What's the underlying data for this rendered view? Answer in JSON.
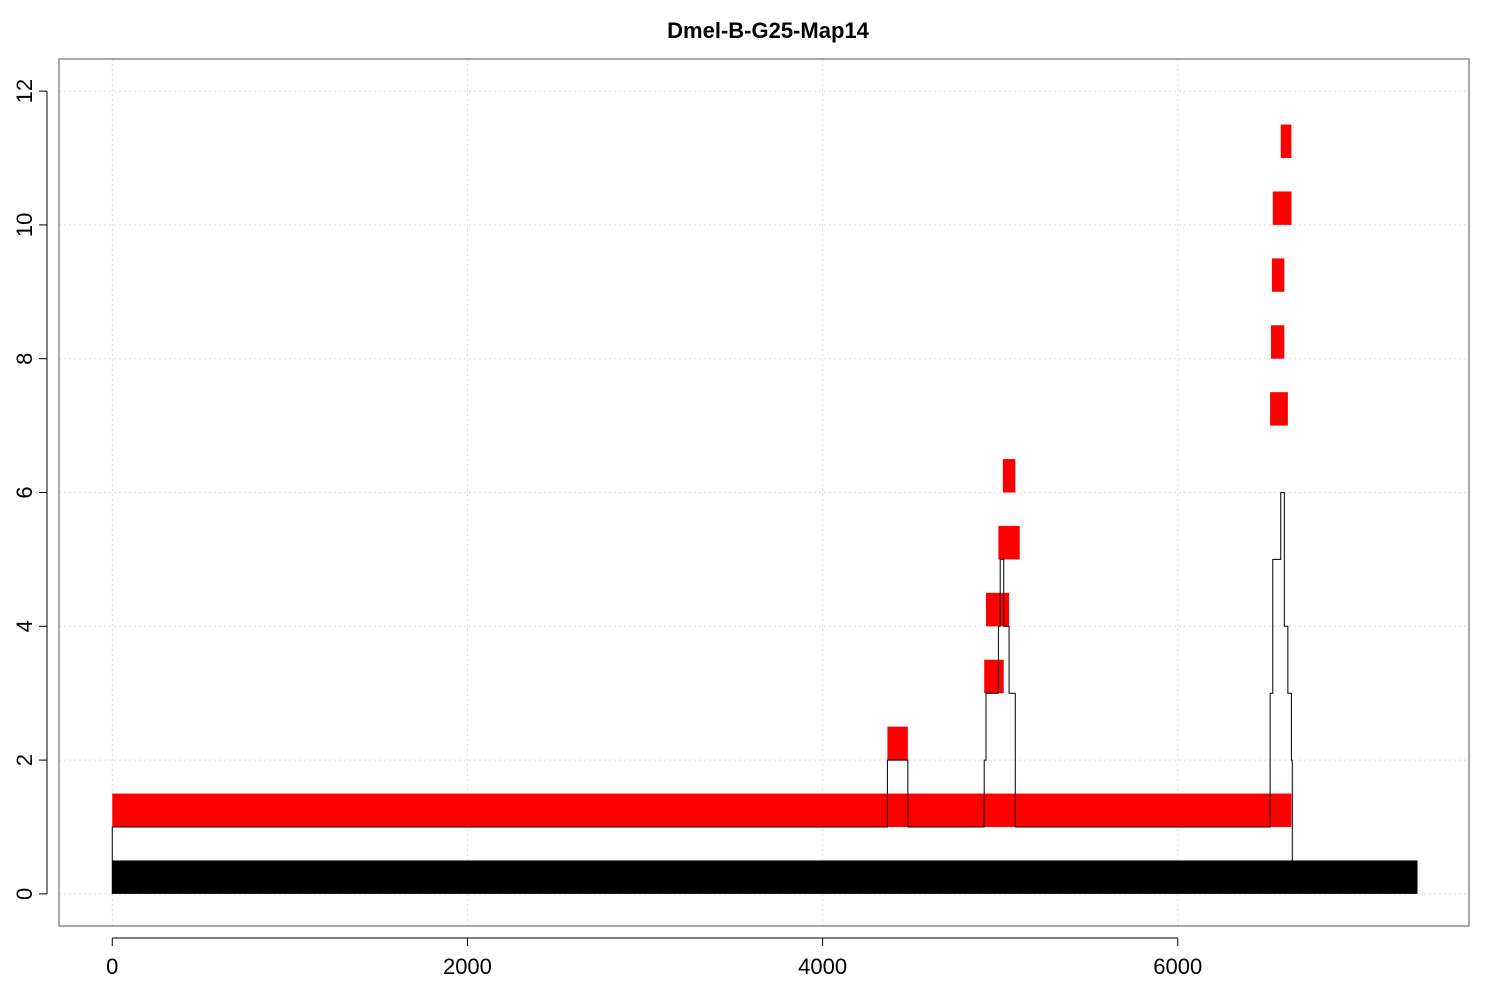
{
  "chart_data": {
    "type": "bar",
    "title": "Dmel-B-G25-Map14",
    "xlabel": "",
    "ylabel": "",
    "xlim": [
      -300,
      7640
    ],
    "ylim": [
      -0.48,
      12.48
    ],
    "xticks": [
      0,
      2000,
      4000,
      6000
    ],
    "yticks": [
      0,
      2,
      4,
      6,
      8,
      10,
      12
    ],
    "grid": true,
    "colors": {
      "read": "#ff0000",
      "reference": "#000000",
      "coverage_line": "#000000",
      "grid": "#dddddd"
    },
    "reference_bar": {
      "x0": 0,
      "x1": 7350,
      "y0": 0,
      "y1": 0.5
    },
    "read_segments": [
      {
        "x0": 0,
        "x1": 6640,
        "y0": 1,
        "y1": 1.5
      },
      {
        "x0": 4365,
        "x1": 4480,
        "y0": 2,
        "y1": 2.5
      },
      {
        "x0": 4910,
        "x1": 5020,
        "y0": 3,
        "y1": 3.5
      },
      {
        "x0": 4920,
        "x1": 4990,
        "y0": 4,
        "y1": 4.5
      },
      {
        "x0": 4985,
        "x1": 5050,
        "y0": 4,
        "y1": 4.5
      },
      {
        "x0": 4990,
        "x1": 5110,
        "y0": 5,
        "y1": 5.5
      },
      {
        "x0": 5015,
        "x1": 5085,
        "y0": 6,
        "y1": 6.5
      },
      {
        "x0": 6520,
        "x1": 6620,
        "y0": 7,
        "y1": 7.5
      },
      {
        "x0": 6525,
        "x1": 6600,
        "y0": 8,
        "y1": 8.5
      },
      {
        "x0": 6530,
        "x1": 6600,
        "y0": 9,
        "y1": 9.5
      },
      {
        "x0": 6535,
        "x1": 6640,
        "y0": 10,
        "y1": 10.5
      },
      {
        "x0": 6580,
        "x1": 6640,
        "y0": 11,
        "y1": 11.5
      }
    ],
    "coverage_step": [
      [
        0,
        1
      ],
      [
        4365,
        2
      ],
      [
        4480,
        1
      ],
      [
        4910,
        2
      ],
      [
        4920,
        3
      ],
      [
        4990,
        4
      ],
      [
        5000,
        5
      ],
      [
        5020,
        4
      ],
      [
        5050,
        3
      ],
      [
        5085,
        1
      ],
      [
        6520,
        3
      ],
      [
        6535,
        5
      ],
      [
        6580,
        6
      ],
      [
        6600,
        4
      ],
      [
        6620,
        3
      ],
      [
        6640,
        2
      ],
      [
        6645,
        0
      ]
    ]
  }
}
